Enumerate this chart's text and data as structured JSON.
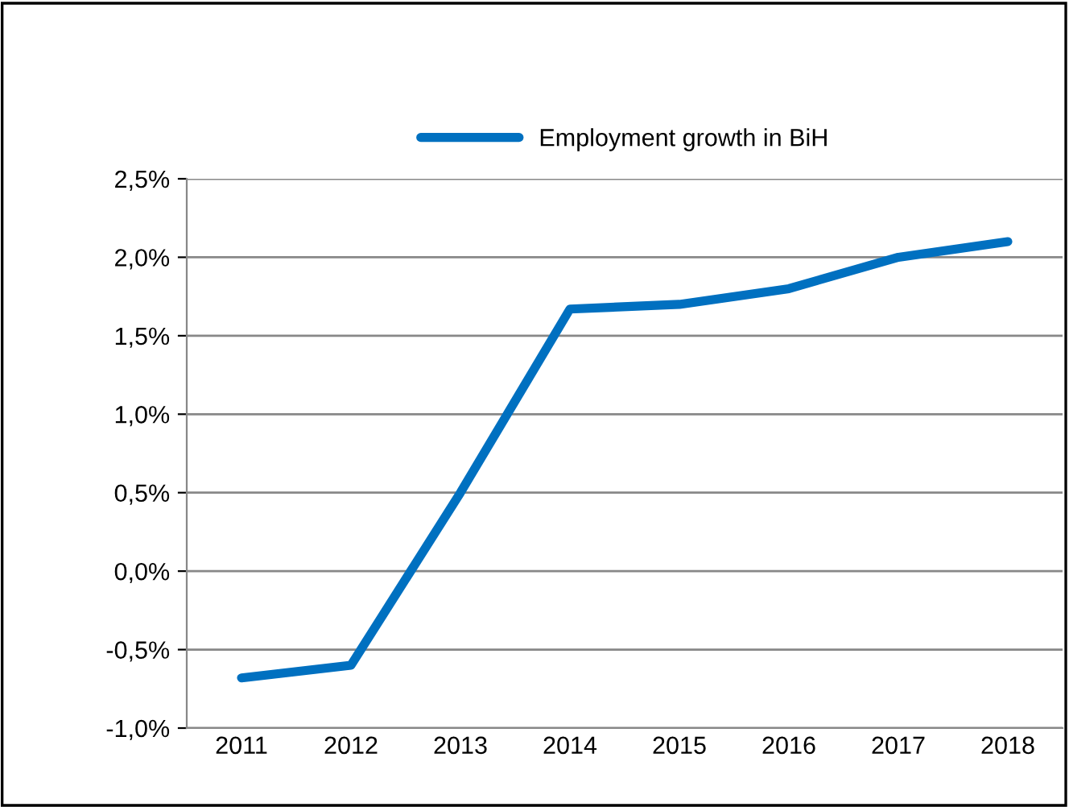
{
  "chart_data": {
    "type": "line",
    "categories": [
      "2011",
      "2012",
      "2013",
      "2014",
      "2015",
      "2016",
      "2017",
      "2018"
    ],
    "series": [
      {
        "name": "Employment growth in BiH",
        "color": "#0070c0",
        "values": [
          -0.68,
          -0.6,
          0.5,
          1.67,
          1.7,
          1.8,
          2.0,
          2.1
        ]
      }
    ],
    "ylim": [
      -1.0,
      2.5
    ],
    "yticks": [
      {
        "value": -1.0,
        "label": "-1,0%"
      },
      {
        "value": -0.5,
        "label": "-0,5%"
      },
      {
        "value": 0.0,
        "label": "0,0%"
      },
      {
        "value": 0.5,
        "label": "0,5%"
      },
      {
        "value": 1.0,
        "label": "1,0%"
      },
      {
        "value": 1.5,
        "label": "1,5%"
      },
      {
        "value": 2.0,
        "label": "2,0%"
      },
      {
        "value": 2.5,
        "label": "2,5%"
      }
    ],
    "grid": "y",
    "legend": "top",
    "marker": "none",
    "line_style": "solid"
  }
}
